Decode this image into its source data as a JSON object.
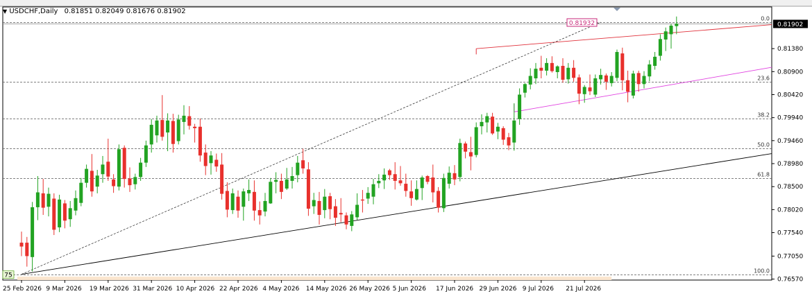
{
  "header": {
    "symbol_tf": "USDCHF,Daily",
    "ohlc": "0.81851 0.82049 0.81676 0.81902",
    "arrow_icon": "triangle-down-icon"
  },
  "colors": {
    "bull": "#22a322",
    "bear": "#e8302c",
    "frame": "#000000",
    "grid": "#555555",
    "price_box": "#000000",
    "red_line": "#e0303a",
    "magenta_line": "#e040e0",
    "fib_box": "#c8287a",
    "time_band": "#fbe6cf"
  },
  "chart_data": {
    "type": "candlestick",
    "title": "USDCHF,Daily",
    "ylim": [
      0.7655,
      0.8225
    ],
    "y_ticks": [
      "0.81380",
      "0.80900",
      "0.80420",
      "0.79940",
      "0.79460",
      "0.78980",
      "0.78500",
      "0.78020",
      "0.77540",
      "0.77050",
      "0.76570"
    ],
    "x_ticks": [
      "25 Feb 2026",
      "9 Mar 2026",
      "19 Mar 2026",
      "31 Mar 2026",
      "10 Apr 2026",
      "22 Apr 2026",
      "4 May 2026",
      "14 May 2026",
      "26 May 2026",
      "5 Jun 2026",
      "17 Jun 2026",
      "29 Jun 2026",
      "9 Jul 2026",
      "21 Jul 2026"
    ],
    "x_tick_bar_index": [
      0,
      8,
      16,
      24,
      32,
      40,
      48,
      56,
      64,
      72,
      80,
      88,
      96,
      104
    ],
    "current_price": "0.81902",
    "fib_retracement": {
      "levels": [
        {
          "label": "0.0",
          "price": 0.81932
        },
        {
          "label": "23.6",
          "price": 0.8069
        },
        {
          "label": "38.2",
          "price": 0.7992
        },
        {
          "label": "50.0",
          "price": 0.793
        },
        {
          "label": "61.8",
          "price": 0.7867
        },
        {
          "label": "100.0",
          "price": 0.7667
        }
      ],
      "high_label": "0.81932",
      "low_label": "75"
    },
    "trendlines": [
      {
        "name": "support",
        "from": [
          0,
          0.7667
        ],
        "to": [
          143,
          0.7919
        ]
      },
      {
        "name": "upper-channel-red",
        "from": [
          84,
          0.8138
        ],
        "to": [
          143,
          0.8188
        ]
      },
      {
        "name": "lower-channel-magenta",
        "from": [
          91,
          0.8006
        ],
        "to": [
          143,
          0.8099
        ]
      },
      {
        "name": "fib-diagonal",
        "from": [
          0,
          0.7667
        ],
        "to": [
          107,
          0.81932
        ]
      }
    ],
    "candles": [
      {
        "o": 0.7733,
        "h": 0.7756,
        "l": 0.7705,
        "c": 0.7725
      },
      {
        "o": 0.7733,
        "h": 0.7745,
        "l": 0.7683,
        "c": 0.7705
      },
      {
        "o": 0.7703,
        "h": 0.7818,
        "l": 0.7673,
        "c": 0.7807
      },
      {
        "o": 0.7807,
        "h": 0.7872,
        "l": 0.778,
        "c": 0.7838
      },
      {
        "o": 0.7836,
        "h": 0.7866,
        "l": 0.7791,
        "c": 0.7806
      },
      {
        "o": 0.7808,
        "h": 0.7848,
        "l": 0.7788,
        "c": 0.7835
      },
      {
        "o": 0.7825,
        "h": 0.7836,
        "l": 0.7749,
        "c": 0.776
      },
      {
        "o": 0.7765,
        "h": 0.7833,
        "l": 0.7755,
        "c": 0.7823
      },
      {
        "o": 0.7815,
        "h": 0.7822,
        "l": 0.7763,
        "c": 0.7779
      },
      {
        "o": 0.7782,
        "h": 0.782,
        "l": 0.7766,
        "c": 0.7805
      },
      {
        "o": 0.78,
        "h": 0.7842,
        "l": 0.779,
        "c": 0.7826
      },
      {
        "o": 0.7816,
        "h": 0.7868,
        "l": 0.7809,
        "c": 0.7858
      },
      {
        "o": 0.7858,
        "h": 0.7896,
        "l": 0.7848,
        "c": 0.7887
      },
      {
        "o": 0.7883,
        "h": 0.7918,
        "l": 0.7829,
        "c": 0.784
      },
      {
        "o": 0.785,
        "h": 0.7885,
        "l": 0.7836,
        "c": 0.7873
      },
      {
        "o": 0.7876,
        "h": 0.7914,
        "l": 0.7858,
        "c": 0.7896
      },
      {
        "o": 0.7902,
        "h": 0.795,
        "l": 0.7862,
        "c": 0.7871
      },
      {
        "o": 0.7865,
        "h": 0.7876,
        "l": 0.7837,
        "c": 0.7851
      },
      {
        "o": 0.785,
        "h": 0.7938,
        "l": 0.7842,
        "c": 0.7928
      },
      {
        "o": 0.7931,
        "h": 0.7936,
        "l": 0.7848,
        "c": 0.7866
      },
      {
        "o": 0.7867,
        "h": 0.789,
        "l": 0.7839,
        "c": 0.7853
      },
      {
        "o": 0.7855,
        "h": 0.7877,
        "l": 0.7844,
        "c": 0.787
      },
      {
        "o": 0.787,
        "h": 0.791,
        "l": 0.7862,
        "c": 0.79
      },
      {
        "o": 0.79,
        "h": 0.7946,
        "l": 0.7891,
        "c": 0.7936
      },
      {
        "o": 0.7938,
        "h": 0.7991,
        "l": 0.7921,
        "c": 0.7979
      },
      {
        "o": 0.7957,
        "h": 0.7998,
        "l": 0.7942,
        "c": 0.7988
      },
      {
        "o": 0.7989,
        "h": 0.8041,
        "l": 0.7946,
        "c": 0.7954
      },
      {
        "o": 0.7963,
        "h": 0.8003,
        "l": 0.7924,
        "c": 0.7988
      },
      {
        "o": 0.7987,
        "h": 0.8002,
        "l": 0.7921,
        "c": 0.7939
      },
      {
        "o": 0.7945,
        "h": 0.8,
        "l": 0.7938,
        "c": 0.799
      },
      {
        "o": 0.7985,
        "h": 0.802,
        "l": 0.7959,
        "c": 0.7998
      },
      {
        "o": 0.7997,
        "h": 0.8018,
        "l": 0.7969,
        "c": 0.7977
      },
      {
        "o": 0.7975,
        "h": 0.7981,
        "l": 0.7942,
        "c": 0.7972
      },
      {
        "o": 0.7975,
        "h": 0.7992,
        "l": 0.7902,
        "c": 0.7915
      },
      {
        "o": 0.7921,
        "h": 0.7938,
        "l": 0.7874,
        "c": 0.7893
      },
      {
        "o": 0.7899,
        "h": 0.7924,
        "l": 0.7875,
        "c": 0.7915
      },
      {
        "o": 0.7906,
        "h": 0.7919,
        "l": 0.7881,
        "c": 0.7892
      },
      {
        "o": 0.7896,
        "h": 0.792,
        "l": 0.7823,
        "c": 0.7835
      },
      {
        "o": 0.7841,
        "h": 0.7859,
        "l": 0.7786,
        "c": 0.7802
      },
      {
        "o": 0.7801,
        "h": 0.7846,
        "l": 0.7793,
        "c": 0.7836
      },
      {
        "o": 0.7829,
        "h": 0.7842,
        "l": 0.7785,
        "c": 0.78
      },
      {
        "o": 0.7808,
        "h": 0.7846,
        "l": 0.7779,
        "c": 0.784
      },
      {
        "o": 0.7836,
        "h": 0.7865,
        "l": 0.782,
        "c": 0.7843
      },
      {
        "o": 0.7839,
        "h": 0.7863,
        "l": 0.7779,
        "c": 0.78
      },
      {
        "o": 0.7801,
        "h": 0.7819,
        "l": 0.7771,
        "c": 0.779
      },
      {
        "o": 0.7798,
        "h": 0.7837,
        "l": 0.7788,
        "c": 0.782
      },
      {
        "o": 0.7815,
        "h": 0.7868,
        "l": 0.7814,
        "c": 0.786
      },
      {
        "o": 0.786,
        "h": 0.788,
        "l": 0.7836,
        "c": 0.7864
      },
      {
        "o": 0.7862,
        "h": 0.7877,
        "l": 0.7824,
        "c": 0.7839
      },
      {
        "o": 0.7846,
        "h": 0.7889,
        "l": 0.7843,
        "c": 0.7865
      },
      {
        "o": 0.7862,
        "h": 0.7891,
        "l": 0.7846,
        "c": 0.7872
      },
      {
        "o": 0.7874,
        "h": 0.7914,
        "l": 0.7859,
        "c": 0.79
      },
      {
        "o": 0.7905,
        "h": 0.7929,
        "l": 0.7877,
        "c": 0.7888
      },
      {
        "o": 0.7886,
        "h": 0.7901,
        "l": 0.7789,
        "c": 0.7804
      },
      {
        "o": 0.7809,
        "h": 0.7837,
        "l": 0.7793,
        "c": 0.7822
      },
      {
        "o": 0.782,
        "h": 0.7839,
        "l": 0.7771,
        "c": 0.7791
      },
      {
        "o": 0.7801,
        "h": 0.7845,
        "l": 0.7784,
        "c": 0.7829
      },
      {
        "o": 0.783,
        "h": 0.7837,
        "l": 0.7782,
        "c": 0.7803
      },
      {
        "o": 0.7809,
        "h": 0.7824,
        "l": 0.7768,
        "c": 0.7785
      },
      {
        "o": 0.7795,
        "h": 0.7826,
        "l": 0.7776,
        "c": 0.7792
      },
      {
        "o": 0.779,
        "h": 0.7796,
        "l": 0.7761,
        "c": 0.7771
      },
      {
        "o": 0.7768,
        "h": 0.7799,
        "l": 0.7757,
        "c": 0.7792
      },
      {
        "o": 0.7786,
        "h": 0.7836,
        "l": 0.778,
        "c": 0.7812
      },
      {
        "o": 0.7823,
        "h": 0.7843,
        "l": 0.7796,
        "c": 0.7821
      },
      {
        "o": 0.7825,
        "h": 0.7849,
        "l": 0.7814,
        "c": 0.7837
      },
      {
        "o": 0.7829,
        "h": 0.7866,
        "l": 0.7813,
        "c": 0.7855
      },
      {
        "o": 0.7857,
        "h": 0.7876,
        "l": 0.7847,
        "c": 0.7862
      },
      {
        "o": 0.7863,
        "h": 0.7888,
        "l": 0.7845,
        "c": 0.7875
      },
      {
        "o": 0.7884,
        "h": 0.7887,
        "l": 0.7864,
        "c": 0.7874
      },
      {
        "o": 0.7876,
        "h": 0.7901,
        "l": 0.7844,
        "c": 0.7862
      },
      {
        "o": 0.7863,
        "h": 0.7893,
        "l": 0.7852,
        "c": 0.7857
      },
      {
        "o": 0.7856,
        "h": 0.7877,
        "l": 0.7829,
        "c": 0.7841
      },
      {
        "o": 0.784,
        "h": 0.7863,
        "l": 0.781,
        "c": 0.7826
      },
      {
        "o": 0.7823,
        "h": 0.7863,
        "l": 0.7821,
        "c": 0.7845
      },
      {
        "o": 0.7847,
        "h": 0.7873,
        "l": 0.7822,
        "c": 0.7869
      },
      {
        "o": 0.7872,
        "h": 0.7874,
        "l": 0.7855,
        "c": 0.786
      },
      {
        "o": 0.7869,
        "h": 0.7896,
        "l": 0.7817,
        "c": 0.7838
      },
      {
        "o": 0.7841,
        "h": 0.7849,
        "l": 0.7796,
        "c": 0.7806
      },
      {
        "o": 0.7805,
        "h": 0.7877,
        "l": 0.7797,
        "c": 0.7868
      },
      {
        "o": 0.7856,
        "h": 0.7892,
        "l": 0.7846,
        "c": 0.7879
      },
      {
        "o": 0.7878,
        "h": 0.7895,
        "l": 0.7853,
        "c": 0.7865
      },
      {
        "o": 0.787,
        "h": 0.795,
        "l": 0.7861,
        "c": 0.7941
      },
      {
        "o": 0.794,
        "h": 0.7944,
        "l": 0.7909,
        "c": 0.7923
      },
      {
        "o": 0.7922,
        "h": 0.7954,
        "l": 0.7884,
        "c": 0.7913
      },
      {
        "o": 0.7916,
        "h": 0.7984,
        "l": 0.7911,
        "c": 0.7974
      },
      {
        "o": 0.7976,
        "h": 0.8001,
        "l": 0.7959,
        "c": 0.7985
      },
      {
        "o": 0.7984,
        "h": 0.8004,
        "l": 0.7963,
        "c": 0.7997
      },
      {
        "o": 0.7996,
        "h": 0.8004,
        "l": 0.7958,
        "c": 0.7961
      },
      {
        "o": 0.7965,
        "h": 0.7983,
        "l": 0.7949,
        "c": 0.7975
      },
      {
        "o": 0.7972,
        "h": 0.7976,
        "l": 0.7937,
        "c": 0.7948
      },
      {
        "o": 0.7953,
        "h": 0.7962,
        "l": 0.7926,
        "c": 0.7936
      },
      {
        "o": 0.7942,
        "h": 0.8024,
        "l": 0.7925,
        "c": 0.7988
      },
      {
        "o": 0.7991,
        "h": 0.8055,
        "l": 0.7979,
        "c": 0.8042
      },
      {
        "o": 0.8046,
        "h": 0.8066,
        "l": 0.8036,
        "c": 0.8064
      },
      {
        "o": 0.8063,
        "h": 0.8097,
        "l": 0.8053,
        "c": 0.8081
      },
      {
        "o": 0.8076,
        "h": 0.8108,
        "l": 0.8064,
        "c": 0.8096
      },
      {
        "o": 0.8098,
        "h": 0.8123,
        "l": 0.8076,
        "c": 0.8092
      },
      {
        "o": 0.8092,
        "h": 0.8118,
        "l": 0.8082,
        "c": 0.8108
      },
      {
        "o": 0.8108,
        "h": 0.8122,
        "l": 0.8088,
        "c": 0.8091
      },
      {
        "o": 0.8089,
        "h": 0.8103,
        "l": 0.8076,
        "c": 0.8101
      },
      {
        "o": 0.8102,
        "h": 0.8118,
        "l": 0.8067,
        "c": 0.8073
      },
      {
        "o": 0.8074,
        "h": 0.8108,
        "l": 0.8065,
        "c": 0.8098
      },
      {
        "o": 0.8098,
        "h": 0.8114,
        "l": 0.8069,
        "c": 0.8077
      },
      {
        "o": 0.8078,
        "h": 0.8084,
        "l": 0.8022,
        "c": 0.8044
      },
      {
        "o": 0.8043,
        "h": 0.8062,
        "l": 0.8025,
        "c": 0.8058
      },
      {
        "o": 0.8057,
        "h": 0.8084,
        "l": 0.8041,
        "c": 0.8049
      },
      {
        "o": 0.8042,
        "h": 0.8084,
        "l": 0.8037,
        "c": 0.8076
      },
      {
        "o": 0.8074,
        "h": 0.8096,
        "l": 0.8063,
        "c": 0.8083
      },
      {
        "o": 0.8082,
        "h": 0.8086,
        "l": 0.8052,
        "c": 0.8069
      },
      {
        "o": 0.8066,
        "h": 0.8089,
        "l": 0.8059,
        "c": 0.8081
      },
      {
        "o": 0.8077,
        "h": 0.8136,
        "l": 0.807,
        "c": 0.8131
      },
      {
        "o": 0.8128,
        "h": 0.814,
        "l": 0.8051,
        "c": 0.8072
      },
      {
        "o": 0.8072,
        "h": 0.8092,
        "l": 0.8026,
        "c": 0.8048
      },
      {
        "o": 0.804,
        "h": 0.8092,
        "l": 0.8034,
        "c": 0.8086
      },
      {
        "o": 0.8087,
        "h": 0.8092,
        "l": 0.8048,
        "c": 0.8064
      },
      {
        "o": 0.8064,
        "h": 0.8091,
        "l": 0.8055,
        "c": 0.8081
      },
      {
        "o": 0.808,
        "h": 0.8114,
        "l": 0.807,
        "c": 0.8105
      },
      {
        "o": 0.8102,
        "h": 0.8131,
        "l": 0.8094,
        "c": 0.8121
      },
      {
        "o": 0.8123,
        "h": 0.8168,
        "l": 0.8113,
        "c": 0.8158
      },
      {
        "o": 0.8157,
        "h": 0.8182,
        "l": 0.8133,
        "c": 0.8174
      },
      {
        "o": 0.8168,
        "h": 0.819,
        "l": 0.8138,
        "c": 0.8186
      },
      {
        "o": 0.8185,
        "h": 0.8205,
        "l": 0.8168,
        "c": 0.819
      }
    ]
  }
}
